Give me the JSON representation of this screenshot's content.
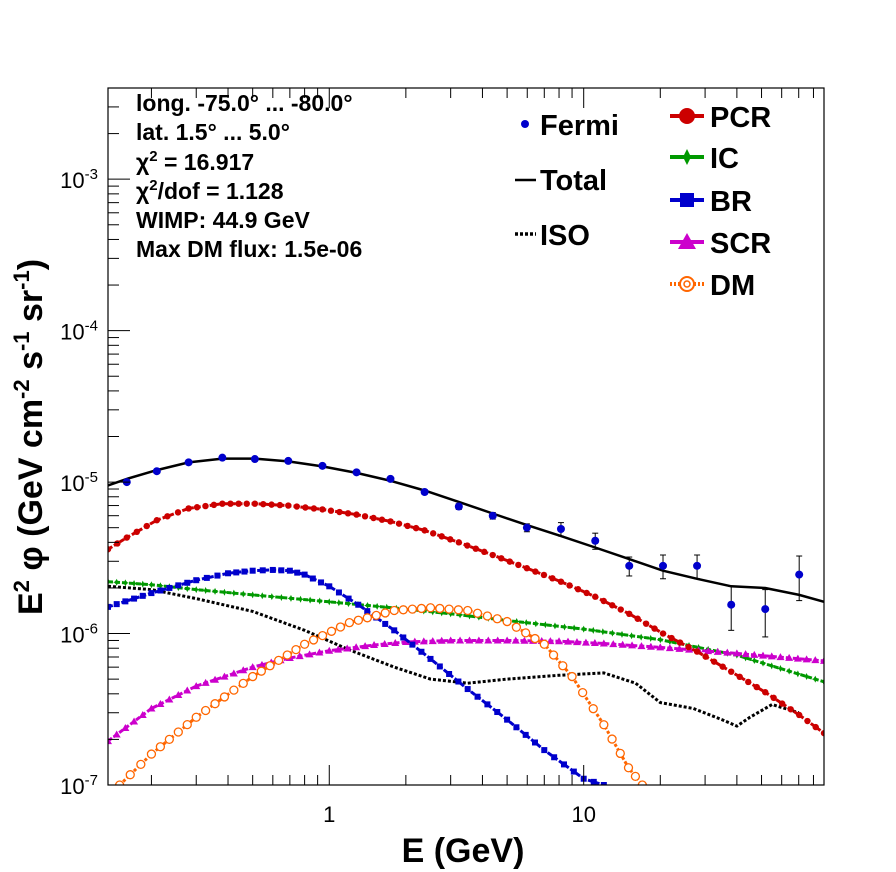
{
  "chart_data": {
    "type": "line",
    "xscale": "log",
    "yscale": "log",
    "xlim": [
      0.135,
      88
    ],
    "ylim": [
      1e-07,
      0.004
    ],
    "xlabel": "E (GeV)",
    "ylabel_parts": {
      "pre": "E",
      "sup1": "2",
      "mid": " φ (GeV cm",
      "sup2": "-2",
      "mid2": " s",
      "sup3": "-1",
      "mid3": " sr",
      "sup4": "-1",
      "post": ")"
    },
    "x_ticks": [
      {
        "value": 1,
        "label": "1"
      },
      {
        "value": 10,
        "label": "10"
      }
    ],
    "y_ticks": [
      {
        "value": 1e-07,
        "base": "10",
        "exp": "-7"
      },
      {
        "value": 1e-06,
        "base": "10",
        "exp": "-6"
      },
      {
        "value": 1e-05,
        "base": "10",
        "exp": "-5"
      },
      {
        "value": 0.0001,
        "base": "10",
        "exp": "-4"
      },
      {
        "value": 0.001,
        "base": "10",
        "exp": "-3"
      }
    ],
    "info": {
      "longitude": "long. -75.0° ... -80.0°",
      "latitude": "lat. 1.5° ... 5.0°",
      "chi2_sym": "χ",
      "chi2_sup": "2",
      "chi2_val": " = 16.917",
      "chi2dof_sym": "χ",
      "chi2dof_sup": "2",
      "chi2dof_val": "/dof = 1.128",
      "wimp": "WIMP: 44.9 GeV",
      "max_dm": "Max DM flux: 1.5e-06"
    },
    "legend_left": [
      {
        "name": "Fermi",
        "style": "points",
        "color": "#0000cc"
      },
      {
        "name": "Total",
        "style": "solid",
        "color": "#000000"
      },
      {
        "name": "ISO",
        "style": "dotted",
        "color": "#000000"
      }
    ],
    "legend_right": [
      {
        "name": "PCR",
        "marker": "circle",
        "color": "#cc0000"
      },
      {
        "name": "IC",
        "marker": "star",
        "color": "#009900"
      },
      {
        "name": "BR",
        "marker": "square",
        "color": "#0000cc"
      },
      {
        "name": "SCR",
        "marker": "triangle",
        "color": "#cc00cc"
      },
      {
        "name": "DM",
        "marker": "open-circle",
        "color": "#ff6600"
      }
    ],
    "fermi": [
      {
        "x": 0.16,
        "y": 1e-05,
        "err": 3e-07
      },
      {
        "x": 0.21,
        "y": 1.18e-05,
        "err": 3e-07
      },
      {
        "x": 0.28,
        "y": 1.35e-05,
        "err": 3e-07
      },
      {
        "x": 0.38,
        "y": 1.45e-05,
        "err": 3e-07
      },
      {
        "x": 0.51,
        "y": 1.42e-05,
        "err": 3e-07
      },
      {
        "x": 0.69,
        "y": 1.38e-05,
        "err": 3e-07
      },
      {
        "x": 0.94,
        "y": 1.28e-05,
        "err": 3e-07
      },
      {
        "x": 1.28,
        "y": 1.16e-05,
        "err": 3e-07
      },
      {
        "x": 1.74,
        "y": 1.05e-05,
        "err": 3e-07
      },
      {
        "x": 2.37,
        "y": 8.6e-06,
        "err": 3e-07
      },
      {
        "x": 3.23,
        "y": 6.9e-06,
        "err": 3e-07
      },
      {
        "x": 4.39,
        "y": 6e-06,
        "err": 3e-07
      },
      {
        "x": 5.98,
        "y": 5e-06,
        "err": 3e-07
      },
      {
        "x": 8.14,
        "y": 4.9e-06,
        "err": 5e-07
      },
      {
        "x": 11.1,
        "y": 4.1e-06,
        "err": 5e-07
      },
      {
        "x": 15.1,
        "y": 2.8e-06,
        "err": 4e-07
      },
      {
        "x": 20.5,
        "y": 2.8e-06,
        "err": 5e-07
      },
      {
        "x": 27.9,
        "y": 2.8e-06,
        "err": 5e-07
      },
      {
        "x": 38.0,
        "y": 1.55e-06,
        "err": 5e-07
      },
      {
        "x": 51.7,
        "y": 1.45e-06,
        "err": 5e-07
      },
      {
        "x": 70.3,
        "y": 2.45e-06,
        "err": 8e-07
      }
    ],
    "series": [
      {
        "name": "Total",
        "color": "#000000",
        "style": "solid",
        "marker": "none",
        "x": [
          0.135,
          0.16,
          0.21,
          0.28,
          0.38,
          0.51,
          0.69,
          0.94,
          1.28,
          1.74,
          2.37,
          3.23,
          4.39,
          5.98,
          8.14,
          11.1,
          15.1,
          20.5,
          27.9,
          38.0,
          51.7,
          70.3,
          88
        ],
        "y": [
          9.5e-06,
          1.05e-05,
          1.2e-05,
          1.35e-05,
          1.43e-05,
          1.43e-05,
          1.37e-05,
          1.27e-05,
          1.15e-05,
          1.02e-05,
          8.8e-06,
          7.4e-06,
          6.2e-06,
          5.2e-06,
          4.4e-06,
          3.7e-06,
          3.1e-06,
          2.6e-06,
          2.3e-06,
          2.05e-06,
          2e-06,
          1.8e-06,
          1.62e-06
        ]
      },
      {
        "name": "PCR",
        "color": "#cc0000",
        "style": "dashed",
        "marker": "circle",
        "x": [
          0.135,
          0.16,
          0.21,
          0.28,
          0.38,
          0.51,
          0.69,
          0.94,
          1.28,
          1.74,
          2.37,
          3.23,
          4.39,
          5.98,
          8.14,
          11.1,
          15.1,
          20.5,
          27.9,
          38.0,
          51.7,
          70.3,
          88
        ],
        "y": [
          3.6e-06,
          4.3e-06,
          5.6e-06,
          6.7e-06,
          7.2e-06,
          7.2e-06,
          7e-06,
          6.6e-06,
          6.1e-06,
          5.5e-06,
          4.8e-06,
          4e-06,
          3.3e-06,
          2.7e-06,
          2.2e-06,
          1.75e-06,
          1.35e-06,
          1e-06,
          7.6e-07,
          5.6e-07,
          4.1e-07,
          2.9e-07,
          2.2e-07
        ]
      },
      {
        "name": "IC",
        "color": "#009900",
        "style": "dashed",
        "marker": "star",
        "x": [
          0.135,
          0.2,
          0.3,
          0.5,
          1,
          2,
          3,
          5,
          10,
          20,
          40,
          88
        ],
        "y": [
          2.2e-06,
          2.1e-06,
          1.95e-06,
          1.8e-06,
          1.62e-06,
          1.45e-06,
          1.35e-06,
          1.22e-06,
          1.07e-06,
          9.1e-07,
          7.2e-07,
          4.8e-07
        ]
      },
      {
        "name": "BR",
        "color": "#0000cc",
        "style": "dashed",
        "marker": "square",
        "x": [
          0.135,
          0.2,
          0.3,
          0.4,
          0.5,
          0.6,
          0.7,
          0.8,
          1.0,
          1.3,
          1.8,
          2.5,
          3.5,
          5,
          7,
          10,
          12
        ],
        "y": [
          1.5e-06,
          1.85e-06,
          2.25e-06,
          2.5e-06,
          2.6e-06,
          2.63e-06,
          2.6e-06,
          2.45e-06,
          2.05e-06,
          1.55e-06,
          1.05e-06,
          6.8e-07,
          4.3e-07,
          2.7e-07,
          1.7e-07,
          1.1e-07,
          1e-07
        ]
      },
      {
        "name": "SCR",
        "color": "#cc00cc",
        "style": "dashed",
        "marker": "triangle",
        "x": [
          0.135,
          0.2,
          0.3,
          0.5,
          0.7,
          1,
          1.5,
          2,
          3,
          5,
          8,
          12,
          20,
          40,
          88
        ],
        "y": [
          1.95e-07,
          3.2e-07,
          4.5e-07,
          6e-07,
          6.9e-07,
          7.7e-07,
          8.4e-07,
          8.8e-07,
          9e-07,
          9e-07,
          8.9e-07,
          8.6e-07,
          8.1e-07,
          7.4e-07,
          6.6e-07
        ]
      },
      {
        "name": "DM",
        "color": "#ff6600",
        "style": "dotted",
        "marker": "open-circle",
        "x": [
          0.15,
          0.2,
          0.3,
          0.5,
          0.8,
          1.2,
          1.8,
          2.5,
          3.5,
          5,
          7,
          9,
          12,
          15,
          17
        ],
        "y": [
          1e-07,
          1.6e-07,
          2.8e-07,
          5.2e-07,
          8.5e-07,
          1.18e-06,
          1.42e-06,
          1.48e-06,
          1.42e-06,
          1.2e-06,
          8.5e-07,
          5.2e-07,
          2.5e-07,
          1.3e-07,
          1e-07
        ]
      },
      {
        "name": "ISO",
        "color": "#000000",
        "style": "dotted",
        "marker": "none",
        "x": [
          0.135,
          0.2,
          0.3,
          0.5,
          0.8,
          1.2,
          1.8,
          2.5,
          3.5,
          5,
          8,
          12,
          16,
          20,
          27,
          35,
          40,
          45,
          55,
          70
        ],
        "y": [
          2.05e-06,
          1.95e-06,
          1.7e-06,
          1.4e-06,
          1.05e-06,
          7.8e-07,
          6e-07,
          5e-07,
          4.7e-07,
          5e-07,
          5.3e-07,
          5.5e-07,
          4.7e-07,
          3.5e-07,
          3.2e-07,
          2.7e-07,
          2.45e-07,
          2.8e-07,
          3.4e-07,
          3e-07
        ]
      }
    ]
  }
}
